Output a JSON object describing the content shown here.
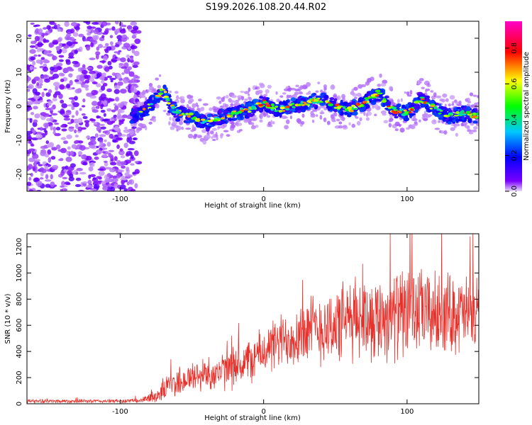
{
  "figure_title": "S199.2026.108.20.44.R02",
  "colors": {
    "snr_line": "#e8302a",
    "axis": "#000000"
  },
  "chart_data": [
    {
      "type": "heatmap",
      "title": "S199.2026.108.20.44.R02",
      "xlabel": "Height of straight line (km)",
      "ylabel": "Frequency (Hz)",
      "xlim": [
        -165,
        150
      ],
      "ylim": [
        -25,
        25
      ],
      "x_ticks": [
        -100,
        0,
        100
      ],
      "y_ticks": [
        -20,
        -10,
        0,
        10,
        20
      ],
      "colorbar": {
        "label": "Normalized spectral amplitude",
        "range": [
          0.0,
          0.95
        ],
        "ticks": [
          0.0,
          0.2,
          0.4,
          0.6,
          0.8
        ],
        "tick_labels": [
          "0.0",
          "0.2",
          "0.4",
          "0.6",
          "0.8"
        ],
        "colormap": [
          "#e8d9f7",
          "#7a00ff",
          "#0000ff",
          "#00c8ff",
          "#00ff00",
          "#ffff00",
          "#ff0000",
          "#ff00c8"
        ]
      },
      "noise_region_x": [
        -165,
        -95
      ],
      "ridge_x": [
        -95,
        -85,
        -75,
        -70,
        -65,
        -60,
        -50,
        -40,
        -35,
        -20,
        -10,
        0,
        10,
        20,
        30,
        40,
        50,
        60,
        70,
        80,
        90,
        100,
        110,
        120,
        130,
        140,
        150
      ],
      "ridge_freq": [
        -3,
        -2,
        2,
        5,
        0,
        -2,
        -3,
        -5,
        -4,
        -2,
        -1,
        1,
        -1,
        0,
        1,
        2,
        0,
        -1,
        1,
        4,
        -1,
        -2,
        2,
        -1,
        -3,
        -2,
        -3
      ]
    },
    {
      "type": "line",
      "xlabel": "Height of straight line (km)",
      "ylabel": "SNR (10 * v/v)",
      "xlim": [
        -165,
        150
      ],
      "ylim": [
        0,
        1300
      ],
      "x_ticks": [
        -100,
        0,
        100
      ],
      "y_ticks": [
        0,
        200,
        400,
        600,
        800,
        1000,
        1200
      ],
      "series": [
        {
          "name": "SNR",
          "envelope_x": [
            -165,
            -100,
            -85,
            -75,
            -65,
            -50,
            -40,
            -30,
            -20,
            -10,
            0,
            10,
            20,
            30,
            40,
            50,
            60,
            70,
            80,
            90,
            100,
            110,
            120,
            130,
            140,
            150
          ],
          "envelope_mean": [
            20,
            20,
            25,
            60,
            150,
            200,
            230,
            240,
            280,
            330,
            400,
            460,
            520,
            560,
            580,
            600,
            640,
            660,
            660,
            680,
            690,
            700,
            680,
            700,
            680,
            690
          ],
          "envelope_spread": [
            15,
            15,
            20,
            60,
            120,
            130,
            140,
            150,
            170,
            180,
            200,
            220,
            260,
            280,
            300,
            320,
            330,
            340,
            350,
            360,
            360,
            350,
            340,
            330,
            320,
            320
          ]
        }
      ]
    }
  ]
}
